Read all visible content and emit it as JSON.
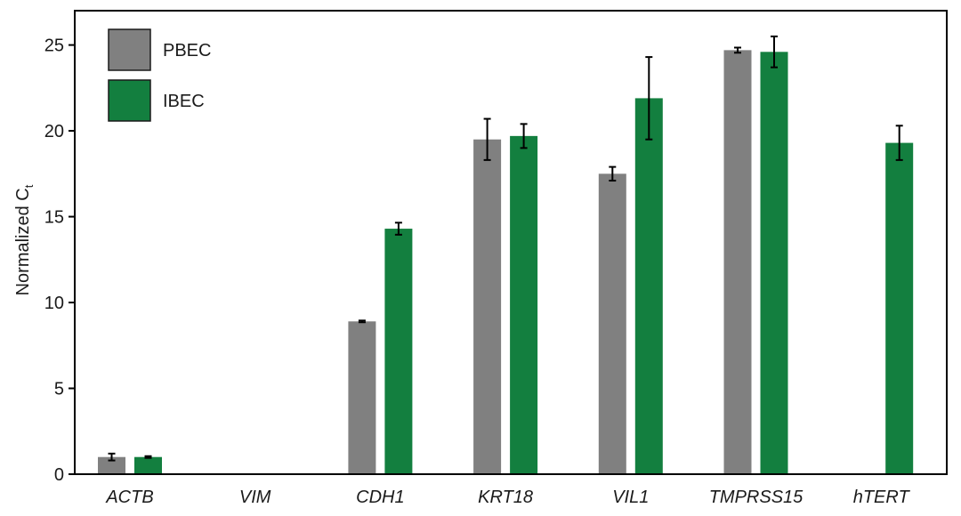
{
  "chart_data": {
    "type": "bar",
    "categories": [
      "ACTB",
      "VIM",
      "CDH1",
      "KRT18",
      "VIL1",
      "TMPRSS15",
      "hTERT"
    ],
    "series": [
      {
        "name": "PBEC",
        "color": "#808080",
        "values": [
          1.0,
          null,
          8.9,
          19.5,
          17.5,
          24.7,
          null
        ],
        "errors": [
          0.2,
          null,
          0.05,
          1.2,
          0.4,
          0.15,
          null
        ]
      },
      {
        "name": "IBEC",
        "color": "#137f3f",
        "values": [
          1.0,
          null,
          14.3,
          19.7,
          21.9,
          24.6,
          19.3
        ],
        "errors": [
          0.05,
          null,
          0.35,
          0.7,
          2.4,
          0.9,
          1.0
        ]
      }
    ],
    "ylabel": "Normalized C",
    "ylabel_subscript": "t",
    "xlabel": "",
    "title": "",
    "ylim": [
      0,
      27
    ],
    "yticks": [
      "0",
      "5",
      "10",
      "15",
      "20",
      "25"
    ],
    "grid": false,
    "legend_position": "top-left"
  }
}
